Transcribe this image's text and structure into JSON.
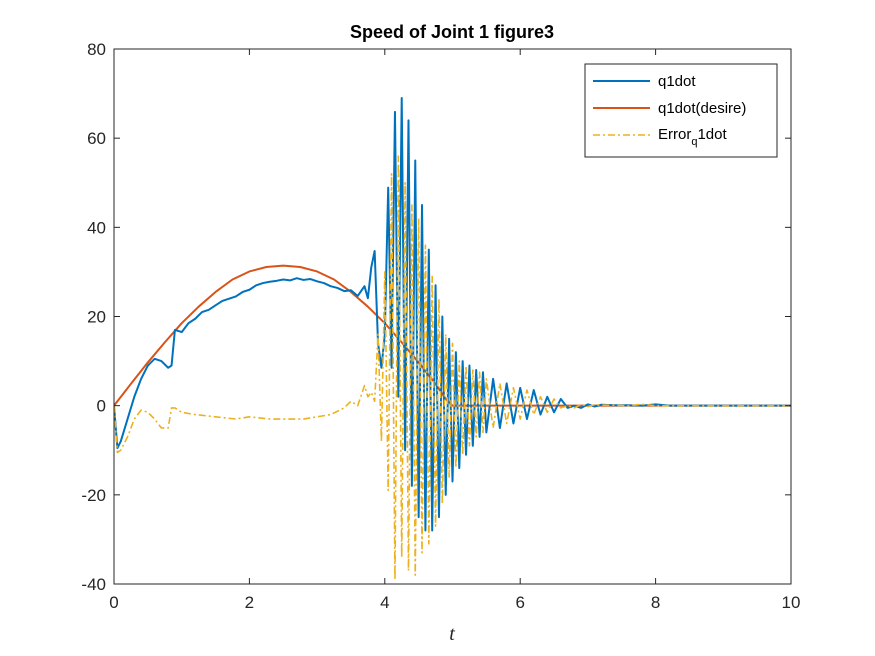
{
  "chart_data": {
    "type": "line",
    "title": "Speed of Joint 1 figure3",
    "xlabel": "t",
    "ylabel": "",
    "xlim": [
      0,
      10
    ],
    "ylim": [
      -40,
      80
    ],
    "xticks": [
      0,
      2,
      4,
      6,
      8,
      10
    ],
    "yticks": [
      -40,
      -20,
      0,
      20,
      40,
      60,
      80
    ],
    "grid": false,
    "legend_position": "top-right",
    "colors": {
      "q1dot": "#0072BD",
      "desire": "#D95319",
      "error": "#EDB120",
      "axis": "#262626"
    },
    "legend": {
      "q1dot": "q1dot",
      "desire": "q1dot(desire)",
      "error_main": "Error",
      "error_sub": "q",
      "error_tail": "1dot"
    },
    "series": [
      {
        "name": "q1dot(desire)",
        "style": "solid",
        "x": [
          0,
          0.25,
          0.5,
          0.75,
          1.0,
          1.25,
          1.5,
          1.75,
          2.0,
          2.25,
          2.5,
          2.75,
          3.0,
          3.25,
          3.5,
          3.75,
          4.0,
          4.25,
          4.5,
          4.75,
          4.9,
          5.0,
          6.0,
          7.0,
          8.0,
          9.0,
          10.0
        ],
        "values": [
          0,
          4.9,
          9.7,
          14.2,
          18.5,
          22.2,
          25.5,
          28.3,
          30.1,
          31.1,
          31.4,
          31.1,
          30.1,
          28.3,
          25.5,
          22.2,
          18.5,
          14.2,
          9.7,
          4.9,
          1.5,
          0,
          0,
          0,
          0,
          0,
          0
        ]
      },
      {
        "name": "q1dot",
        "style": "solid",
        "x": [
          0,
          0.05,
          0.1,
          0.2,
          0.3,
          0.4,
          0.5,
          0.6,
          0.7,
          0.8,
          0.85,
          0.9,
          1.0,
          1.1,
          1.2,
          1.3,
          1.4,
          1.5,
          1.6,
          1.7,
          1.8,
          1.9,
          2.0,
          2.1,
          2.2,
          2.3,
          2.4,
          2.5,
          2.6,
          2.7,
          2.8,
          2.9,
          3.0,
          3.1,
          3.2,
          3.3,
          3.4,
          3.5,
          3.6,
          3.7,
          3.75,
          3.8,
          3.85,
          3.9,
          3.95,
          4.0,
          4.05,
          4.1,
          4.15,
          4.2,
          4.25,
          4.3,
          4.35,
          4.4,
          4.45,
          4.5,
          4.55,
          4.6,
          4.65,
          4.7,
          4.75,
          4.8,
          4.85,
          4.9,
          4.95,
          5.0,
          5.05,
          5.1,
          5.15,
          5.2,
          5.25,
          5.3,
          5.35,
          5.4,
          5.45,
          5.5,
          5.6,
          5.7,
          5.8,
          5.9,
          6.0,
          6.1,
          6.2,
          6.3,
          6.4,
          6.5,
          6.6,
          6.7,
          6.8,
          6.9,
          7.0,
          7.1,
          7.2,
          7.4,
          7.6,
          7.8,
          8.0,
          8.2,
          8.5,
          9.0,
          9.5,
          10.0
        ],
        "values": [
          0,
          -9.5,
          -8,
          -3,
          2,
          6,
          9,
          10.5,
          10,
          8.5,
          9,
          17,
          16.5,
          18.5,
          19.5,
          21,
          21.5,
          22.5,
          23.5,
          24,
          24.5,
          25.5,
          26,
          27,
          27.5,
          27.8,
          28,
          28.3,
          28.1,
          28.6,
          28.2,
          28.4,
          27.9,
          27.5,
          26.8,
          26.4,
          25.7,
          25.9,
          24.6,
          26.8,
          24.1,
          31.0,
          34.7,
          14.0,
          8.5,
          16.0,
          48.9,
          8.5,
          65.9,
          2.0,
          69.0,
          -10.0,
          64.0,
          -18.0,
          55.0,
          -25.0,
          45.0,
          -28.0,
          35.0,
          -28.0,
          27.0,
          -25.0,
          20.0,
          -20.0,
          15.0,
          -17.0,
          12.0,
          -14.0,
          10.0,
          -11.0,
          9.0,
          -9.0,
          8.0,
          -7.0,
          7.5,
          -6.0,
          6.0,
          -5.0,
          5.0,
          -4.0,
          4.0,
          -3.0,
          3.5,
          -2.0,
          2.0,
          -1.5,
          1.5,
          -0.5,
          0,
          -0.5,
          0.3,
          -0.2,
          0.2,
          0.1,
          0.1,
          0,
          0.3,
          0,
          0,
          0,
          0,
          0
        ]
      },
      {
        "name": "Error_q1dot",
        "style": "dashdot",
        "x": [
          0,
          0.05,
          0.1,
          0.2,
          0.3,
          0.4,
          0.5,
          0.6,
          0.7,
          0.8,
          0.85,
          0.9,
          1.0,
          1.2,
          1.5,
          1.8,
          2.0,
          2.3,
          2.5,
          2.8,
          3.0,
          3.2,
          3.4,
          3.5,
          3.6,
          3.7,
          3.75,
          3.8,
          3.85,
          3.9,
          3.95,
          4.0,
          4.05,
          4.1,
          4.15,
          4.2,
          4.25,
          4.3,
          4.35,
          4.4,
          4.45,
          4.5,
          4.55,
          4.6,
          4.65,
          4.7,
          4.75,
          4.8,
          4.85,
          4.9,
          4.95,
          5.0,
          5.05,
          5.1,
          5.15,
          5.2,
          5.25,
          5.3,
          5.35,
          5.4,
          5.45,
          5.5,
          5.6,
          5.7,
          5.8,
          5.9,
          6.0,
          6.1,
          6.2,
          6.3,
          6.4,
          6.5,
          6.6,
          6.7,
          6.8,
          6.9,
          7.0,
          7.1,
          7.2,
          7.4,
          7.6,
          7.8,
          8.0,
          8.2,
          8.5,
          9.0,
          9.5,
          10.0
        ],
        "values": [
          0,
          -10.5,
          -10,
          -7,
          -3,
          -1,
          -1.5,
          -3,
          -5,
          -5,
          -0.5,
          -0.5,
          -1.5,
          -2,
          -2.5,
          -3,
          -2.5,
          -3,
          -3,
          -3,
          -2.5,
          -2,
          -0.5,
          1,
          0,
          4.5,
          2,
          3,
          1,
          16,
          -8,
          30,
          -19,
          52,
          -39,
          56,
          -34,
          50,
          -37,
          45,
          -38,
          42,
          -33,
          36,
          -31,
          29,
          -27,
          24,
          -22,
          16,
          -16,
          14,
          -14,
          10,
          -11,
          9,
          -9,
          8,
          -7,
          7.5,
          -6,
          6,
          -5,
          5,
          -4,
          4,
          -3,
          3.5,
          -2,
          2,
          -1.5,
          1.5,
          -0.5,
          0,
          -0.5,
          0.3,
          -0.2,
          0.2,
          0.1,
          0.1,
          0,
          0.3,
          0,
          0,
          0,
          0,
          0,
          0
        ]
      }
    ]
  }
}
